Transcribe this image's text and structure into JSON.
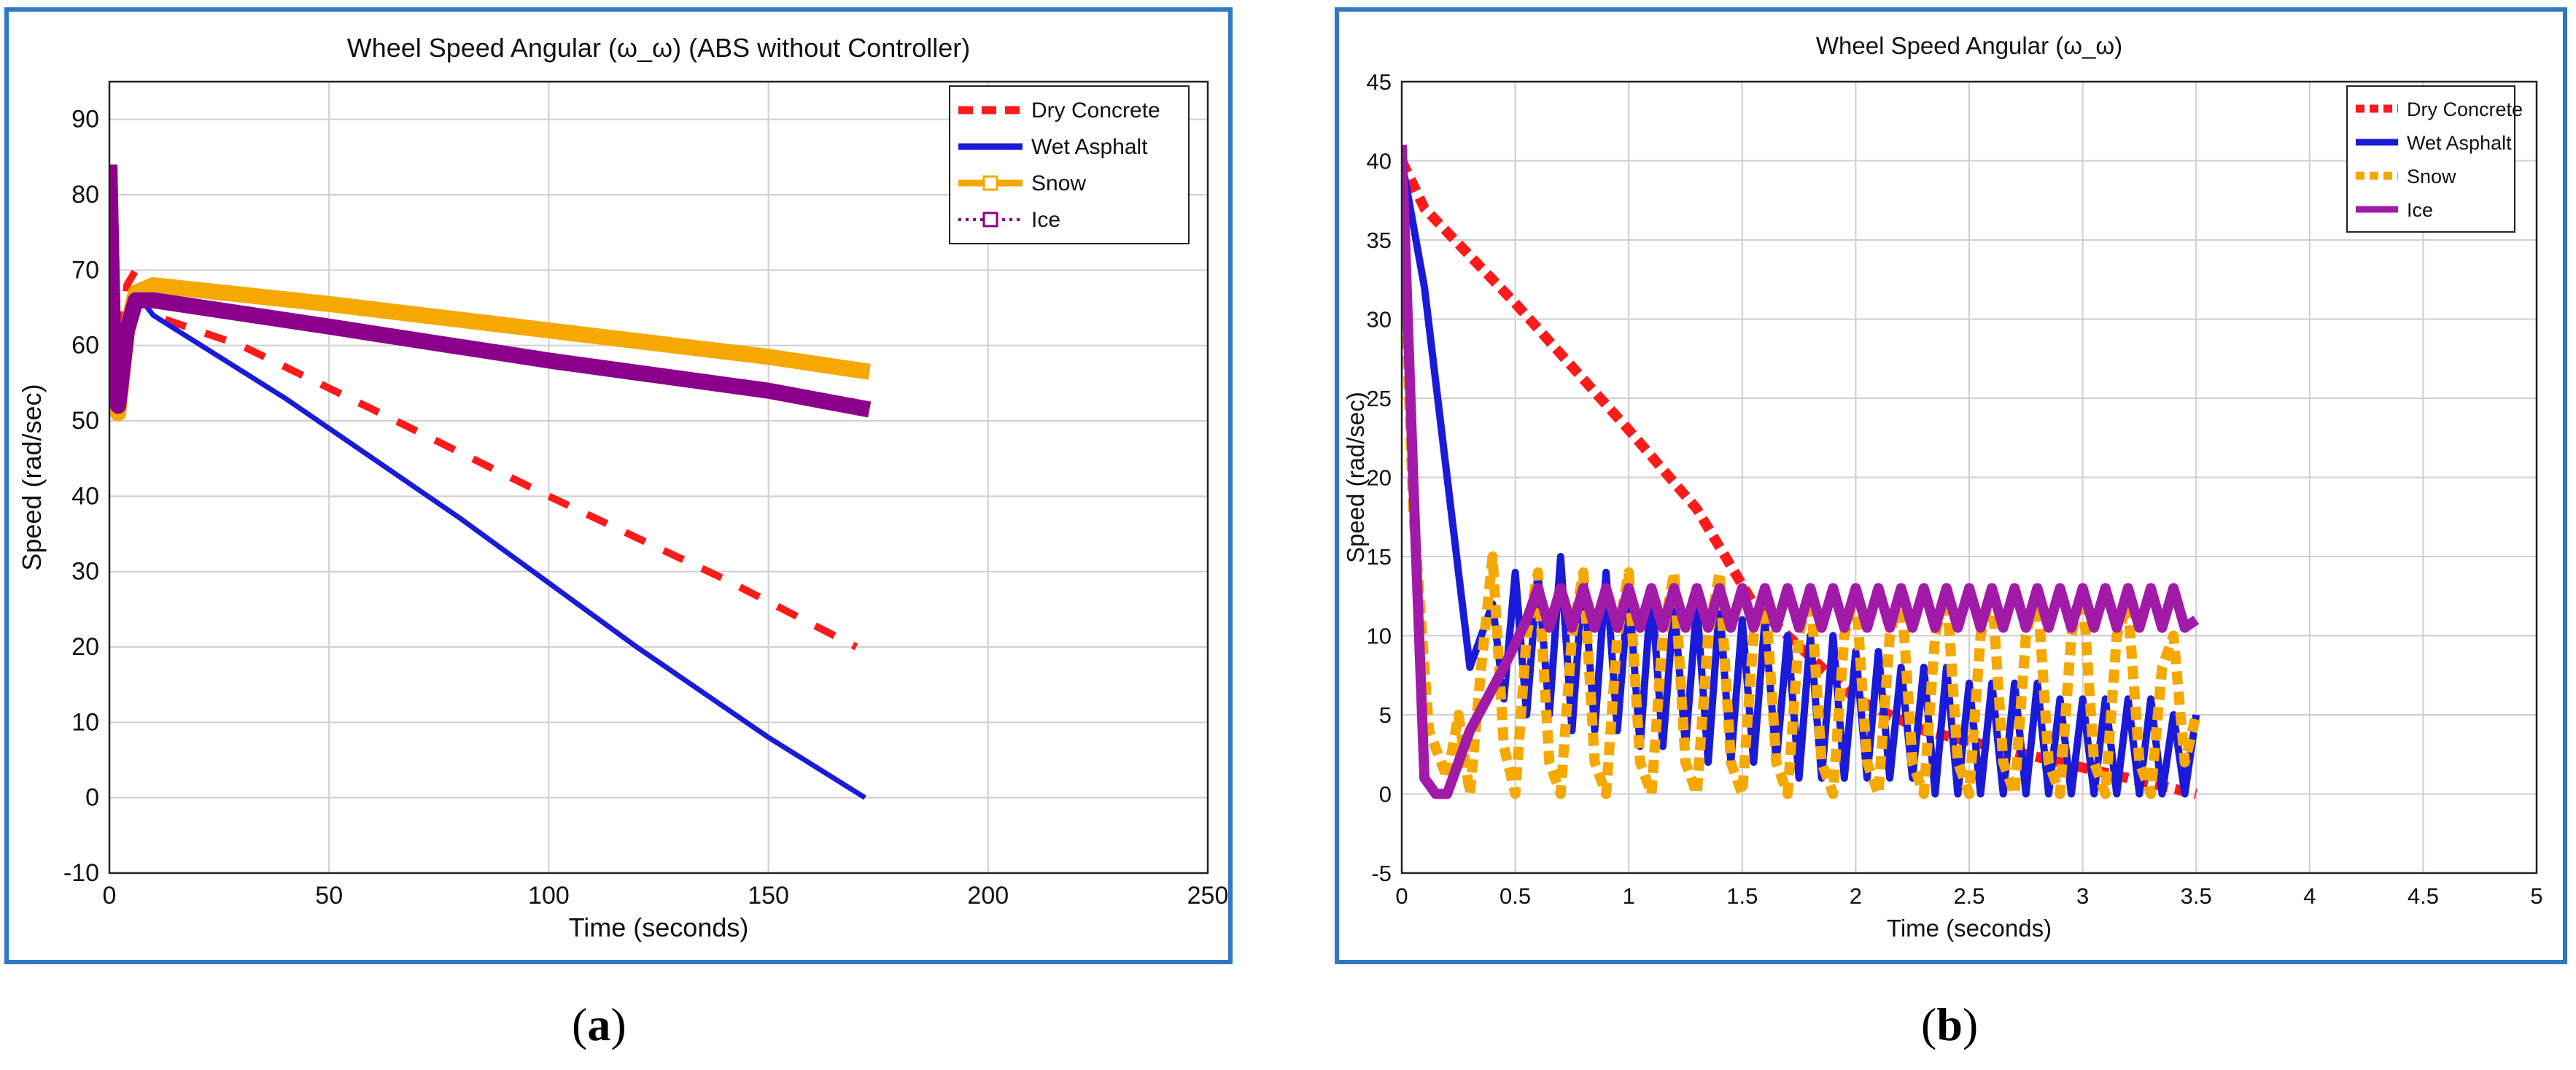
{
  "chart_data": [
    {
      "type": "line",
      "panel_label": "a",
      "title": "Wheel Speed Angular (ω_ω) (ABS without Controller)",
      "xlabel": "Time (seconds)",
      "ylabel": "Speed (rad/sec)",
      "xlim": [
        0,
        250
      ],
      "ylim": [
        -10,
        95
      ],
      "xticks": [
        0,
        50,
        100,
        150,
        200,
        250
      ],
      "yticks": [
        -10,
        0,
        10,
        20,
        30,
        40,
        50,
        60,
        70,
        80,
        90
      ],
      "grid": true,
      "legend_position": "top-right",
      "series": [
        {
          "name": "Dry Concrete",
          "color": "#ff1a1a",
          "style": "dashed",
          "marker": "none",
          "x": [
            0,
            0.8,
            1.5,
            2.5,
            4,
            6,
            10,
            30,
            60,
            100,
            140,
            170
          ],
          "y": [
            84,
            62,
            56,
            60,
            68,
            70,
            64,
            60,
            51.5,
            40,
            29,
            20
          ]
        },
        {
          "name": "Wet Asphalt",
          "color": "#1a1ad9",
          "style": "solid",
          "marker": "none",
          "x": [
            0,
            0.8,
            2,
            4,
            6,
            10,
            40,
            80,
            120,
            150,
            172
          ],
          "y": [
            84,
            60,
            53,
            64,
            67,
            64,
            53,
            37,
            20,
            8,
            0
          ]
        },
        {
          "name": "Snow",
          "color": "#f5a800",
          "style": "solid",
          "marker": "square",
          "x": [
            0,
            1,
            2,
            4,
            6,
            10,
            50,
            100,
            150,
            173
          ],
          "y": [
            84,
            55,
            51,
            62,
            67,
            68,
            65.5,
            62,
            58.5,
            56.5
          ]
        },
        {
          "name": "Ice",
          "color": "#8b008b",
          "style": "dotted",
          "marker": "square",
          "x": [
            0,
            1,
            2,
            4,
            6,
            10,
            50,
            100,
            150,
            173
          ],
          "y": [
            84,
            56,
            52,
            62,
            66,
            66,
            62.5,
            58,
            54,
            51.5
          ]
        }
      ]
    },
    {
      "type": "line",
      "panel_label": "b",
      "title": "Wheel Speed Angular (ω_ω)",
      "xlabel": "Time (seconds)",
      "ylabel": "Speed (rad/sec)",
      "xlim": [
        0,
        5
      ],
      "ylim": [
        -5,
        45
      ],
      "xticks": [
        0,
        0.5,
        1,
        1.5,
        2,
        2.5,
        3,
        3.5,
        4,
        4.5,
        5
      ],
      "yticks": [
        -5,
        0,
        5,
        10,
        15,
        20,
        25,
        30,
        35,
        40,
        45
      ],
      "grid": true,
      "legend_position": "top-right",
      "series": [
        {
          "name": "Dry Concrete",
          "color": "#ff1a1a",
          "style": "dashed",
          "marker": "none",
          "x": [
            0,
            0.1,
            0.5,
            1.0,
            1.3,
            1.55,
            1.7,
            2.0,
            2.3,
            2.6,
            2.9,
            3.2,
            3.5
          ],
          "y": [
            40,
            37,
            31,
            23,
            18,
            12,
            10,
            6,
            4,
            3,
            2,
            1,
            0
          ]
        },
        {
          "name": "Wet Asphalt",
          "color": "#1a1ad9",
          "style": "solid",
          "marker": "none",
          "x": [
            0,
            0.1,
            0.2,
            0.3,
            0.4,
            0.45,
            0.5,
            0.55,
            0.6,
            0.65,
            0.7,
            0.75,
            0.8,
            0.85,
            0.9,
            0.95,
            1.0,
            1.05,
            1.1,
            1.15,
            1.2,
            1.25,
            1.3,
            1.35,
            1.4,
            1.45,
            1.5,
            1.55,
            1.6,
            1.65,
            1.7,
            1.75,
            1.8,
            1.85,
            1.9,
            1.95,
            2.0,
            2.05,
            2.1,
            2.15,
            2.2,
            2.25,
            2.3,
            2.35,
            2.4,
            2.45,
            2.5,
            2.55,
            2.6,
            2.65,
            2.7,
            2.75,
            2.8,
            2.85,
            2.9,
            2.95,
            3.0,
            3.05,
            3.1,
            3.15,
            3.2,
            3.25,
            3.3,
            3.35,
            3.4,
            3.45,
            3.5
          ],
          "y": [
            40,
            32,
            20,
            8,
            12,
            6,
            14,
            5,
            14,
            5,
            15,
            4,
            14,
            4,
            14,
            4,
            13,
            3,
            13,
            3,
            12,
            3,
            12,
            2,
            12,
            2,
            11,
            2,
            11,
            2,
            10,
            1,
            10,
            1,
            10,
            1,
            9,
            1,
            9,
            1,
            8,
            1,
            8,
            0,
            8,
            0,
            7,
            0,
            7,
            0,
            7,
            0,
            7,
            0,
            6,
            0,
            6,
            0,
            6,
            0,
            6,
            0,
            6,
            0,
            5,
            0,
            5
          ]
        },
        {
          "name": "Snow",
          "color": "#f5a800",
          "style": "dashed",
          "marker": "none",
          "x": [
            0,
            0.05,
            0.12,
            0.2,
            0.25,
            0.3,
            0.35,
            0.4,
            0.45,
            0.5,
            0.55,
            0.6,
            0.65,
            0.7,
            0.75,
            0.8,
            0.85,
            0.9,
            0.95,
            1.0,
            1.05,
            1.1,
            1.15,
            1.2,
            1.25,
            1.3,
            1.35,
            1.4,
            1.45,
            1.5,
            1.55,
            1.6,
            1.65,
            1.7,
            1.75,
            1.8,
            1.85,
            1.9,
            1.95,
            2.0,
            2.05,
            2.1,
            2.15,
            2.2,
            2.25,
            2.3,
            2.35,
            2.4,
            2.45,
            2.5,
            2.55,
            2.6,
            2.65,
            2.7,
            2.75,
            2.8,
            2.85,
            2.9,
            2.95,
            3.0,
            3.05,
            3.1,
            3.15,
            3.2,
            3.25,
            3.3,
            3.35,
            3.4,
            3.45,
            3.5
          ],
          "y": [
            38,
            18,
            4,
            1,
            5,
            0,
            8,
            15,
            3,
            0,
            10,
            14,
            2,
            0,
            10,
            14,
            2,
            0,
            10,
            14,
            2,
            0,
            10,
            14,
            2,
            0,
            10,
            14,
            2,
            0,
            10,
            13,
            2,
            0,
            10,
            13,
            2,
            0,
            10,
            13,
            2,
            0,
            10,
            13,
            2,
            0,
            10,
            13,
            2,
            0,
            10,
            13,
            2,
            0,
            10,
            13,
            2,
            0,
            10,
            13,
            2,
            0,
            10,
            12,
            2,
            0,
            8,
            10,
            2,
            5
          ]
        },
        {
          "name": "Ice",
          "color": "#a21aa8",
          "style": "solid",
          "marker": "none",
          "x": [
            0,
            0.05,
            0.1,
            0.15,
            0.2,
            0.3,
            0.45,
            0.55,
            0.6,
            0.65,
            0.7,
            0.75,
            0.8,
            0.85,
            0.9,
            0.95,
            1.0,
            1.05,
            1.1,
            1.15,
            1.2,
            1.25,
            1.3,
            1.35,
            1.4,
            1.45,
            1.5,
            1.55,
            1.6,
            1.65,
            1.7,
            1.75,
            1.8,
            1.85,
            1.9,
            1.95,
            2.0,
            2.05,
            2.1,
            2.15,
            2.2,
            2.25,
            2.3,
            2.35,
            2.4,
            2.45,
            2.5,
            2.55,
            2.6,
            2.65,
            2.7,
            2.75,
            2.8,
            2.85,
            2.9,
            2.95,
            3.0,
            3.05,
            3.1,
            3.15,
            3.2,
            3.25,
            3.3,
            3.35,
            3.4,
            3.45,
            3.5
          ],
          "y": [
            41,
            20,
            1,
            0,
            0,
            4,
            8,
            11,
            13,
            10.5,
            13,
            10.5,
            13,
            10.5,
            13,
            10.5,
            13,
            10.5,
            13,
            10.5,
            13,
            10.5,
            13,
            10.5,
            13,
            10.5,
            13,
            10.5,
            13,
            10.5,
            13,
            10.5,
            13,
            10.5,
            13,
            10.5,
            13,
            10.5,
            13,
            10.5,
            13,
            10.5,
            13,
            10.5,
            13,
            10.5,
            13,
            10.5,
            13,
            10.5,
            13,
            10.5,
            13,
            10.5,
            13,
            10.5,
            13,
            10.5,
            13,
            10.5,
            13,
            10.5,
            13,
            10.5,
            13,
            10.5,
            11
          ]
        }
      ]
    }
  ]
}
